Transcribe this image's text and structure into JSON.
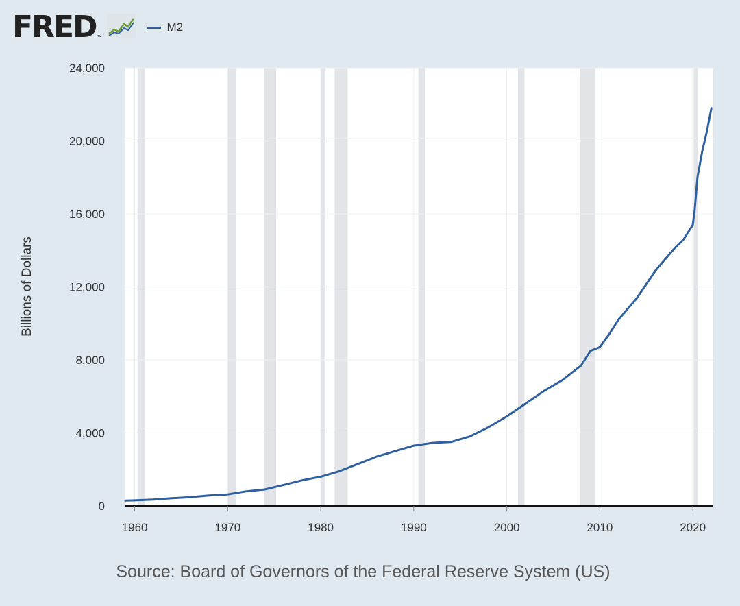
{
  "header": {
    "logo_text": "FRED",
    "logo_tm": "™",
    "logo_icon": "trend-chart-icon",
    "legend_label": "M2"
  },
  "colors": {
    "series": "#2e5fa0",
    "background": "#e1e9f0",
    "plot_bg": "#ffffff",
    "recession": "#e2e4e8"
  },
  "chart_data": {
    "type": "line",
    "title": "",
    "xlabel": "",
    "ylabel": "Billions of Dollars",
    "xlim": [
      1959,
      2022.2
    ],
    "ylim": [
      0,
      24000
    ],
    "x_ticks": [
      1960,
      1970,
      1980,
      1990,
      2000,
      2010,
      2020
    ],
    "x_tick_labels": [
      "1960",
      "1970",
      "1980",
      "1990",
      "2000",
      "2010",
      "2020"
    ],
    "y_ticks": [
      0,
      4000,
      8000,
      12000,
      16000,
      20000,
      24000
    ],
    "y_tick_labels": [
      "0",
      "4,000",
      "8,000",
      "12,000",
      "16,000",
      "20,000",
      "24,000"
    ],
    "grid": "horizontal and vertical",
    "legend_position": "top-left",
    "recessions": [
      [
        1960.3,
        1961.1
      ],
      [
        1969.9,
        1970.9
      ],
      [
        1973.9,
        1975.2
      ],
      [
        1980.0,
        1980.5
      ],
      [
        1981.5,
        1982.9
      ],
      [
        1990.5,
        1991.2
      ],
      [
        2001.2,
        2001.9
      ],
      [
        2007.9,
        2009.5
      ],
      [
        2020.1,
        2020.4
      ]
    ],
    "series": [
      {
        "name": "M2",
        "x": [
          1959,
          1960,
          1962,
          1964,
          1966,
          1968,
          1970,
          1972,
          1974,
          1976,
          1978,
          1980,
          1982,
          1984,
          1986,
          1988,
          1990,
          1992,
          1994,
          1996,
          1998,
          2000,
          2002,
          2004,
          2006,
          2008,
          2009,
          2010,
          2011,
          2012,
          2014,
          2016,
          2018,
          2019,
          2020.0,
          2020.2,
          2020.5,
          2021.0,
          2021.5,
          2022.0
        ],
        "y": [
          290,
          305,
          350,
          420,
          480,
          570,
          630,
          800,
          900,
          1150,
          1400,
          1600,
          1900,
          2300,
          2700,
          3000,
          3300,
          3450,
          3500,
          3800,
          4300,
          4900,
          5600,
          6300,
          6900,
          7700,
          8500,
          8700,
          9400,
          10200,
          11400,
          12900,
          14100,
          14600,
          15400,
          16200,
          18000,
          19400,
          20500,
          21800
        ]
      }
    ]
  },
  "source": "Source: Board of Governors of the Federal Reserve System (US)"
}
